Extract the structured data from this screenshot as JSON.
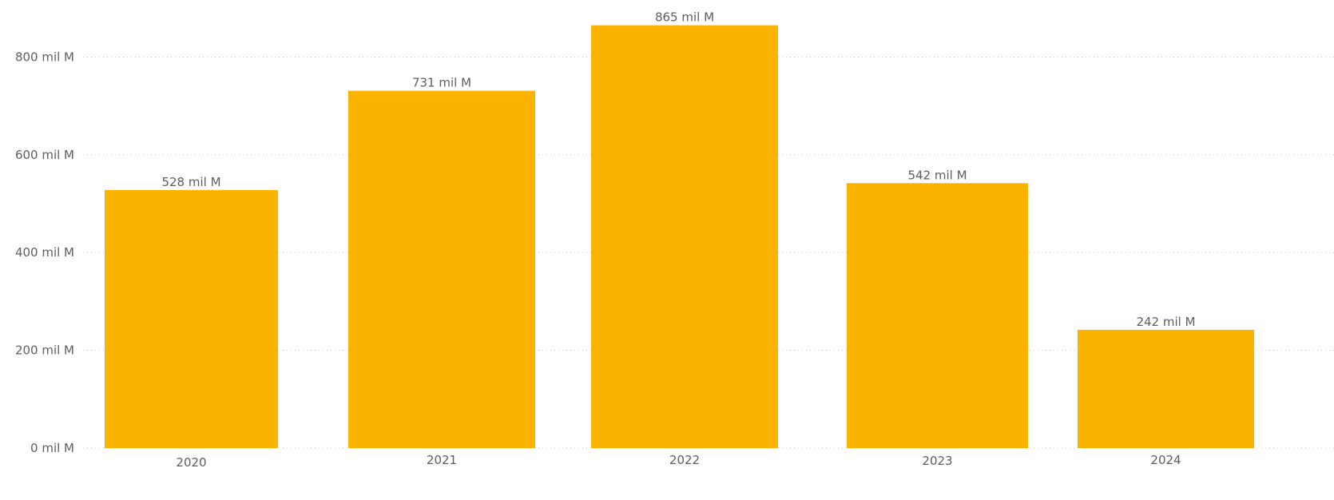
{
  "chart_data": {
    "type": "bar",
    "title": "",
    "xlabel": "",
    "ylabel": "",
    "categories": [
      "2020",
      "2021",
      "2022",
      "2023",
      "2024"
    ],
    "values": [
      528,
      731,
      865,
      542,
      242
    ],
    "value_labels": [
      "528 mil M",
      "731 mil M",
      "865 mil M",
      "542 mil M",
      "242 mil M"
    ],
    "ylim": [
      0,
      900
    ],
    "y_ticks": [
      {
        "value": 0,
        "label": "0 mil M"
      },
      {
        "value": 200,
        "label": "200 mil M"
      },
      {
        "value": 400,
        "label": "400 mil M"
      },
      {
        "value": 600,
        "label": "600 mil M"
      },
      {
        "value": 800,
        "label": "800 mil M"
      }
    ],
    "grid": true,
    "legend": "none",
    "bar_color": "#F9B300"
  }
}
